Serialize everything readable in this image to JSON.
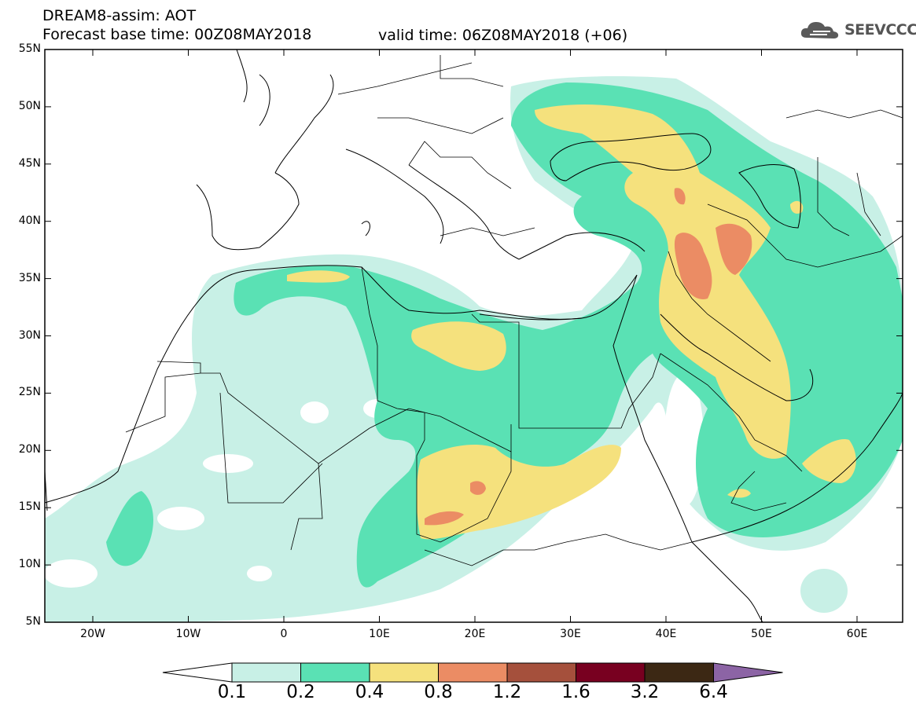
{
  "title": {
    "line1": "DREAM8-assim: AOT",
    "base": "Forecast base time: 00Z08MAY2018",
    "valid": "valid time: 06Z08MAY2018 (+06)"
  },
  "logo": {
    "text": "SEEVCCC",
    "icon": "cloud-logo-icon"
  },
  "map": {
    "lat_labels": [
      "55N",
      "50N",
      "45N",
      "40N",
      "35N",
      "30N",
      "25N",
      "20N",
      "15N",
      "10N",
      "5N"
    ],
    "lon_labels": [
      "20W",
      "10W",
      "0",
      "10E",
      "20E",
      "30E",
      "40E",
      "50E",
      "60E"
    ]
  },
  "colorbar": {
    "labels": [
      "0.1",
      "0.2",
      "0.4",
      "0.8",
      "1.2",
      "1.6",
      "3.2",
      "6.4"
    ],
    "colors": [
      "#c8f0e6",
      "#5ae1b4",
      "#f5e17d",
      "#eb8c64",
      "#a5503c",
      "#780020",
      "#3c2814",
      "#8c64a5"
    ]
  }
}
